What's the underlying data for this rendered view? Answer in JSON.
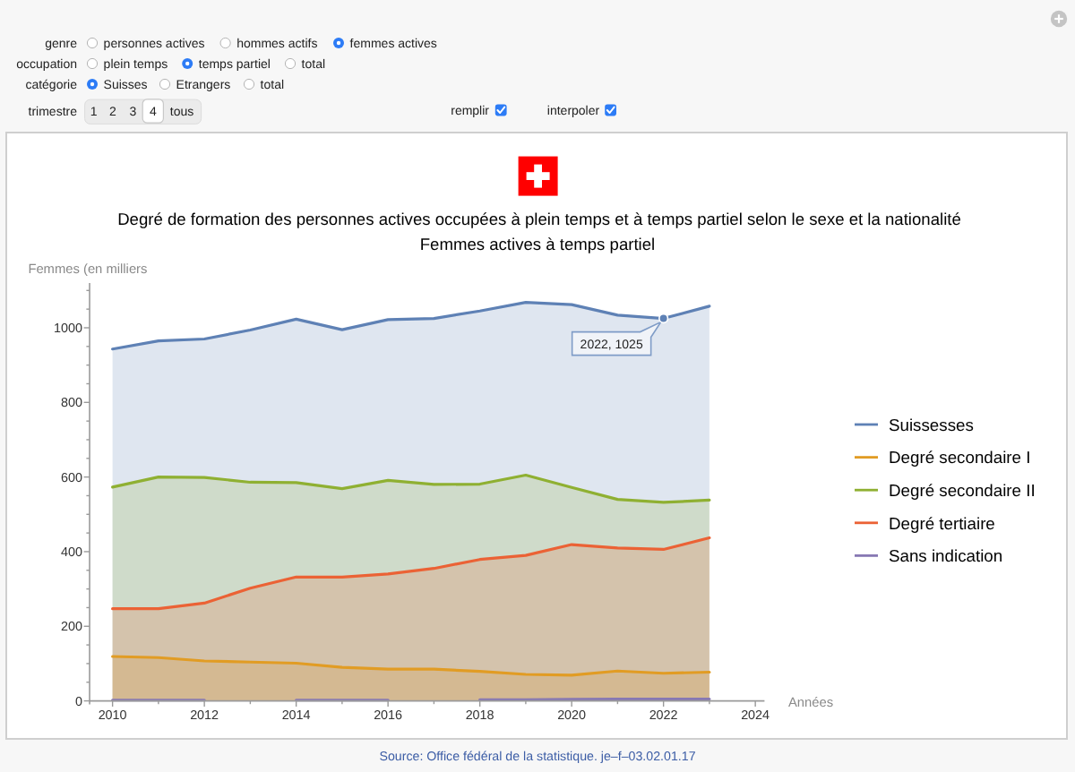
{
  "chart_data": {
    "type": "area",
    "title": "Degré de formation des personnes actives occupées à plein temps et à temps partiel selon le sexe et la nationalité",
    "subtitle": "Femmes actives à temps partiel",
    "xlabel": "Années",
    "ylabel": "Femmes (en milliers",
    "x": [
      2010,
      2011,
      2012,
      2013,
      2014,
      2015,
      2016,
      2017,
      2018,
      2019,
      2020,
      2021,
      2022,
      2023
    ],
    "series": [
      {
        "name": "Suissesses",
        "color": "#5e81b5",
        "values": [
          943,
          965,
          970,
          994,
          1023,
          995,
          1022,
          1025,
          1045,
          1068,
          1062,
          1034,
          1025,
          1058
        ]
      },
      {
        "name": "Degré secondaire I",
        "color": "#e19c24",
        "values": [
          119,
          116,
          107,
          104,
          101,
          90,
          85,
          85,
          79,
          71,
          69,
          80,
          74,
          77
        ]
      },
      {
        "name": "Degré secondaire II",
        "color": "#8fb032",
        "values": [
          573,
          600,
          599,
          586,
          585,
          569,
          591,
          580,
          581,
          605,
          572,
          540,
          532,
          538
        ]
      },
      {
        "name": "Degré tertiaire",
        "color": "#eb6235",
        "values": [
          247,
          247,
          262,
          302,
          332,
          332,
          340,
          355,
          379,
          390,
          419,
          410,
          406,
          437
        ]
      },
      {
        "name": "Sans indication",
        "color": "#8778b3",
        "values": [
          2,
          2,
          2,
          null,
          2,
          2,
          2,
          null,
          3,
          3,
          4,
          5,
          5,
          5
        ]
      }
    ],
    "xlim": [
      2009.5,
      2024.2
    ],
    "xticks": [
      2010,
      {
        "value": 2011,
        "label": null
      },
      2012,
      {
        "value": 2013,
        "label": null
      },
      2014,
      {
        "value": 2015,
        "label": null
      },
      2016,
      {
        "value": 2017,
        "label": null
      },
      2018,
      {
        "value": 2019,
        "label": null
      },
      2020,
      {
        "value": 2021,
        "label": null
      },
      2022,
      {
        "value": 2023,
        "label": null
      },
      2024
    ],
    "ylim": [
      0,
      1120
    ],
    "yticks": [
      0,
      {
        "value": 50,
        "label": null
      },
      {
        "value": 100,
        "label": null
      },
      {
        "value": 150,
        "label": null
      },
      200,
      {
        "value": 250,
        "label": null
      },
      {
        "value": 300,
        "label": null
      },
      {
        "value": 350,
        "label": null
      },
      400,
      {
        "value": 450,
        "label": null
      },
      {
        "value": 500,
        "label": null
      },
      {
        "value": 550,
        "label": null
      },
      600,
      {
        "value": 650,
        "label": null
      },
      {
        "value": 700,
        "label": null
      },
      {
        "value": 750,
        "label": null
      },
      800,
      {
        "value": 850,
        "label": null
      },
      {
        "value": 900,
        "label": null
      },
      {
        "value": 950,
        "label": null
      },
      1000,
      {
        "value": 1050,
        "label": null
      },
      {
        "value": 1100,
        "label": null
      }
    ],
    "legend": "right",
    "annotations": [
      "genre",
      "personnes actives",
      "hommes actifs",
      "femmes actives",
      "occupation",
      "plein temps",
      "temps partiel",
      "total",
      "catégorie",
      "Suisses",
      "Etrangers",
      "total",
      "trimestre",
      "1",
      "2",
      "3",
      "4",
      "tous",
      "remplir",
      "interpoler",
      {
        "text": "2022, 1025",
        "x": 2022,
        "y": 1025
      },
      "Source: Office fédéral de la statistique. je–f–03.02.01.17"
    ]
  }
}
